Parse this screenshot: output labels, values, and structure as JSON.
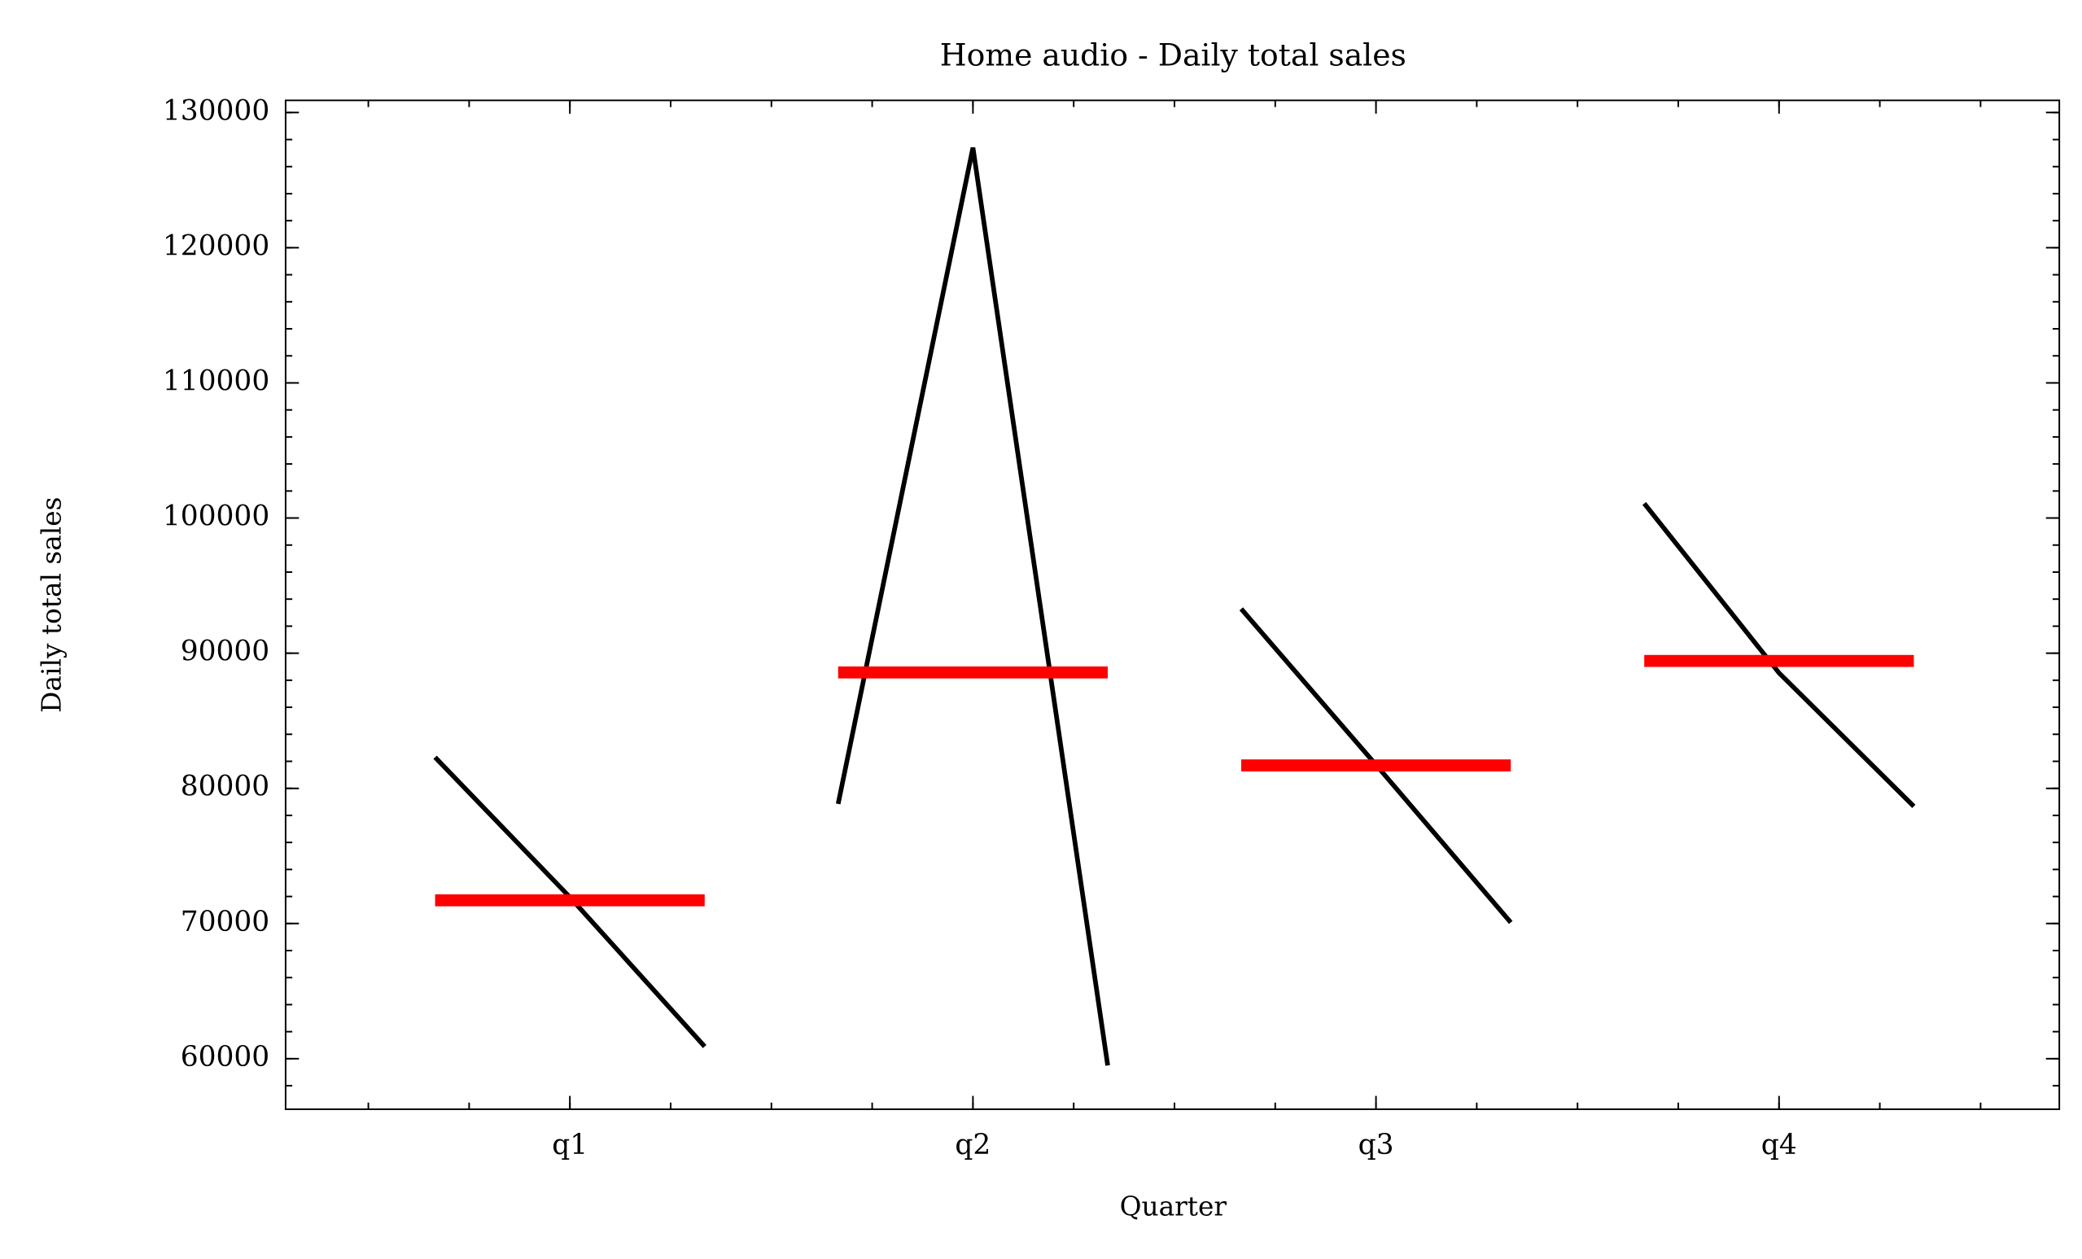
{
  "chart_data": {
    "type": "quarter_plot",
    "title": "Home audio - Daily total sales",
    "xlabel": "Quarter",
    "ylabel": "Daily total sales",
    "categories": [
      "q1",
      "q2",
      "q3",
      "q4"
    ],
    "values": [
      [
        82300,
        71950,
        60900
      ],
      [
        78850,
        127400,
        59500
      ],
      [
        93280,
        81740,
        70080
      ],
      [
        101080,
        88540,
        78670
      ]
    ],
    "means": [
      71720,
      88580,
      81700,
      89430
    ],
    "line_color": "#000000",
    "mean_color": "#ff0000",
    "ylim": [
      56260,
      130900
    ],
    "yticks": [
      60000,
      70000,
      80000,
      90000,
      100000,
      110000,
      120000,
      130000
    ]
  }
}
